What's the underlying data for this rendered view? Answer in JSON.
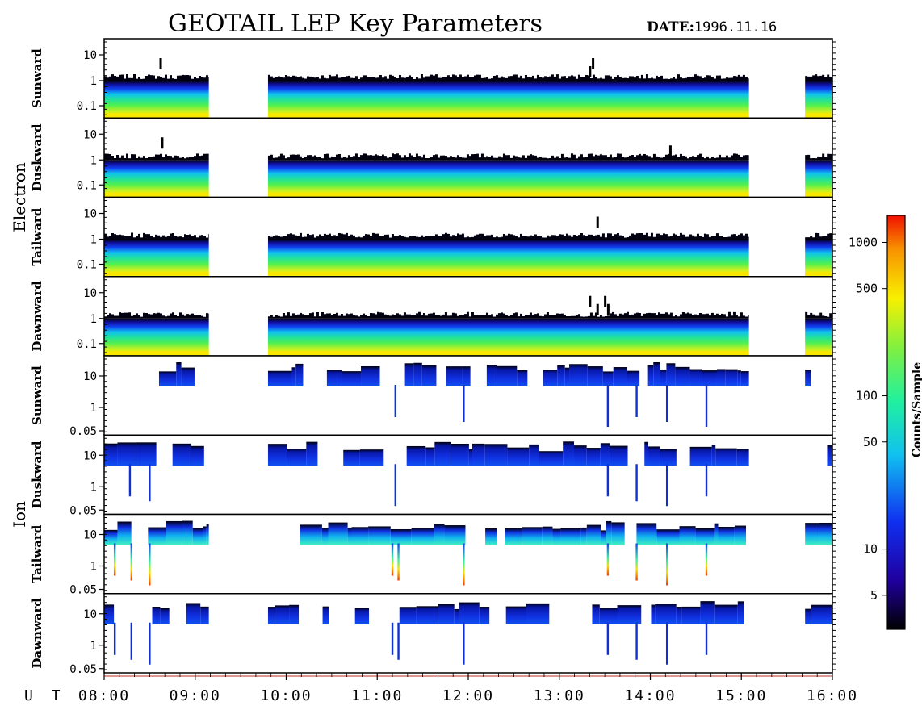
{
  "title": "GEOTAIL LEP Key Parameters",
  "date_label": "DATE:",
  "date_value": "1996.11.16",
  "chart_data": {
    "type": "heatmap",
    "x_axis": {
      "label": "U T",
      "range": [
        "08:00",
        "16:00"
      ],
      "tick_labels": [
        "08:00",
        "09:00",
        "10:00",
        "11:00",
        "12:00",
        "13:00",
        "14:00",
        "15:00",
        "16:00"
      ]
    },
    "data_coverage_utc": [
      [
        "08:00",
        "09:09"
      ],
      [
        "09:48",
        "15:05"
      ],
      [
        "15:42",
        "16:00"
      ]
    ],
    "groups": [
      {
        "name": "Electron",
        "y_scale": "log",
        "y_tick_labels": [
          "10",
          "1",
          "0.1"
        ],
        "panels": [
          {
            "name": "Sunward",
            "spikes_utc": [
              "08:37",
              "13:20",
              "13:22"
            ]
          },
          {
            "name": "Duskward",
            "spikes_utc": [
              "08:38",
              "14:13"
            ]
          },
          {
            "name": "Tailward",
            "spikes_utc": [
              "13:25"
            ]
          },
          {
            "name": "Dawnward",
            "spikes_utc": [
              "13:20",
              "13:25",
              "13:30",
              "13:32"
            ]
          }
        ]
      },
      {
        "name": "Ion",
        "y_scale": "log",
        "y_tick_labels": [
          "10",
          "1",
          "0.05"
        ],
        "panels": [
          {
            "name": "Sunward",
            "spikes_utc": [
              "11:12",
              "11:57",
              "13:32",
              "13:51",
              "14:11",
              "14:37"
            ]
          },
          {
            "name": "Duskward",
            "spikes_utc": [
              "08:17",
              "08:30",
              "11:12",
              "13:32",
              "13:51",
              "14:11",
              "14:37"
            ]
          },
          {
            "name": "Tailward",
            "spikes_utc": [
              "08:07",
              "08:18",
              "08:30",
              "11:10",
              "11:14",
              "11:57",
              "13:32",
              "13:51",
              "14:11",
              "14:37"
            ]
          },
          {
            "name": "Dawnward",
            "spikes_utc": [
              "08:07",
              "08:18",
              "08:30",
              "11:10",
              "11:14",
              "11:57",
              "13:32",
              "13:51",
              "14:11",
              "14:37"
            ]
          }
        ]
      }
    ],
    "colorbar": {
      "label": "Counts/Sample",
      "scale": "log",
      "tick_labels": [
        "1000",
        "500",
        "100",
        "50",
        "10",
        "5"
      ],
      "range": [
        3,
        1500
      ]
    }
  }
}
